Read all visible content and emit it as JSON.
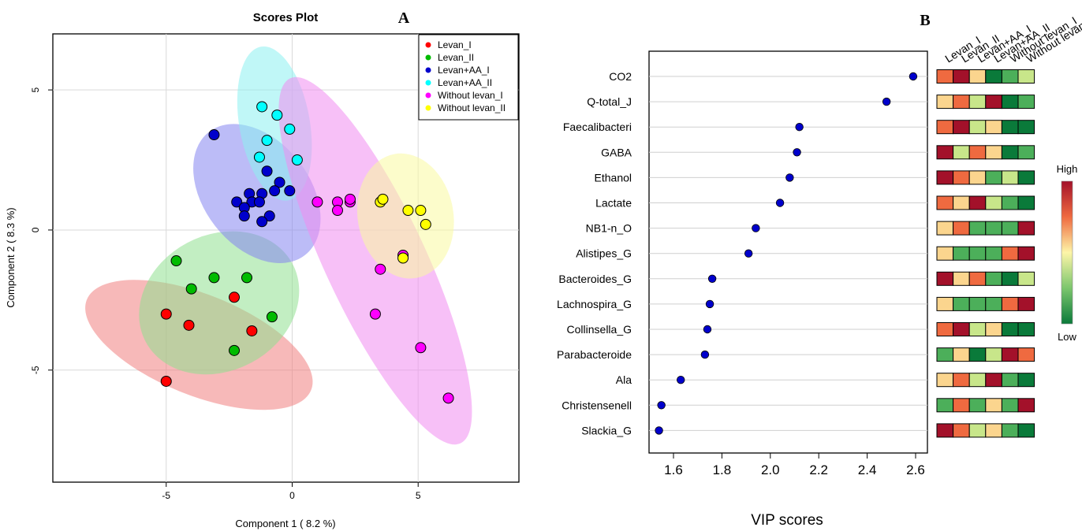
{
  "panels": {
    "a_letter": "A",
    "b_letter": "B"
  },
  "chart_data": [
    {
      "type": "scatter",
      "title": "Scores Plot",
      "xlabel": "Component 1 ( 8.2 %)",
      "ylabel": "Component 2 ( 8.3 %)",
      "xlim": [
        -9.5,
        9.0
      ],
      "ylim": [
        -9.0,
        7.0
      ],
      "xticks": [
        -5,
        0,
        5
      ],
      "yticks": [
        -5,
        0,
        5
      ],
      "grid": true,
      "legend_position": "top-right",
      "series": [
        {
          "name": "Levan_I",
          "color": "#ff0000",
          "points": [
            [
              -5.0,
              -3.0
            ],
            [
              -4.1,
              -3.4
            ],
            [
              -2.3,
              -2.4
            ],
            [
              -1.6,
              -3.6
            ],
            [
              -5.0,
              -5.4
            ]
          ],
          "ellipse": {
            "cx": -3.7,
            "cy": -4.1,
            "rx": 4.8,
            "ry": 2.0,
            "angle": 22,
            "fill": "#f08080"
          }
        },
        {
          "name": "Levan_II",
          "color": "#00bb00",
          "points": [
            [
              -4.6,
              -1.1
            ],
            [
              -4.0,
              -2.1
            ],
            [
              -3.1,
              -1.7
            ],
            [
              -1.8,
              -1.7
            ],
            [
              -0.8,
              -3.1
            ],
            [
              -2.3,
              -4.3
            ]
          ],
          "ellipse": {
            "cx": -2.9,
            "cy": -2.6,
            "rx": 3.3,
            "ry": 2.7,
            "angle": -28,
            "fill": "#90e090"
          }
        },
        {
          "name": "Levan+AA_I",
          "color": "#0000cc",
          "points": [
            [
              -3.1,
              3.4
            ],
            [
              -1.0,
              2.1
            ],
            [
              -0.5,
              1.7
            ],
            [
              -0.1,
              1.4
            ],
            [
              -0.7,
              1.4
            ],
            [
              -1.2,
              1.3
            ],
            [
              -1.7,
              1.3
            ],
            [
              -1.6,
              1.0
            ],
            [
              -1.3,
              1.0
            ],
            [
              -2.2,
              1.0
            ],
            [
              -1.9,
              0.8
            ],
            [
              -1.9,
              0.5
            ],
            [
              -0.9,
              0.5
            ],
            [
              -1.2,
              0.3
            ]
          ],
          "ellipse": {
            "cx": -1.4,
            "cy": 1.3,
            "rx": 2.1,
            "ry": 3.1,
            "angle": -38,
            "fill": "#8585f0"
          }
        },
        {
          "name": "Levan+AA_II",
          "color": "#00ffff",
          "points": [
            [
              -1.2,
              4.4
            ],
            [
              -0.6,
              4.1
            ],
            [
              -0.1,
              3.6
            ],
            [
              -1.0,
              3.2
            ],
            [
              -1.3,
              2.6
            ],
            [
              0.2,
              2.5
            ]
          ],
          "ellipse": {
            "cx": -0.7,
            "cy": 3.8,
            "rx": 1.4,
            "ry": 3.1,
            "angle": -10,
            "fill": "#8cf0f0"
          }
        },
        {
          "name": "Without levan_I",
          "color": "#ff00ff",
          "points": [
            [
              1.0,
              1.0
            ],
            [
              1.8,
              1.0
            ],
            [
              1.8,
              0.7
            ],
            [
              2.3,
              1.0
            ],
            [
              2.3,
              1.1
            ],
            [
              4.4,
              -0.9
            ],
            [
              3.5,
              -1.4
            ],
            [
              3.3,
              -3.0
            ],
            [
              5.1,
              -4.2
            ],
            [
              6.2,
              -6.0
            ]
          ],
          "ellipse": {
            "cx": 3.3,
            "cy": -1.1,
            "rx": 2.0,
            "ry": 8.0,
            "angle": -25,
            "fill": "#f08cf0"
          }
        },
        {
          "name": "Without levan_II",
          "color": "#ffff00",
          "points": [
            [
              3.5,
              1.0
            ],
            [
              3.6,
              1.1
            ],
            [
              4.6,
              0.7
            ],
            [
              5.1,
              0.7
            ],
            [
              5.3,
              0.2
            ],
            [
              4.4,
              -1.0
            ]
          ],
          "ellipse": {
            "cx": 4.5,
            "cy": 0.5,
            "rx": 1.9,
            "ry": 2.5,
            "angle": -10,
            "fill": "#fafaa0"
          }
        }
      ]
    },
    {
      "type": "scatter",
      "xlabel": "VIP scores",
      "xlim": [
        1.5,
        2.62
      ],
      "xticks": [
        "1.6",
        "1.8",
        "2.0",
        "2.2",
        "2.4",
        "2.6"
      ],
      "grid": false,
      "marker_color": "#0000cc",
      "features": [
        "CO2",
        "Q-total_J",
        "Faecalibacteri",
        "GABA",
        "Ethanol",
        "Lactate",
        "NB1-n_O",
        "Alistipes_G",
        "Bacteroides_G",
        "Lachnospira_G",
        "Collinsella_G",
        "Parabacteroide",
        "Ala",
        "Christensenell",
        "Slackia_G"
      ],
      "values": [
        2.59,
        2.48,
        2.12,
        2.11,
        2.08,
        2.04,
        1.94,
        1.91,
        1.76,
        1.75,
        1.74,
        1.73,
        1.63,
        1.55,
        1.54
      ]
    },
    {
      "type": "heatmap",
      "columns": [
        "Levan_I",
        "Levan_II",
        "Levan+AA_I",
        "Levan+AA_II",
        "Without levan_I",
        "Without levan_II"
      ],
      "rows": [
        "CO2",
        "Q-total_J",
        "Faecalibacteri",
        "GABA",
        "Ethanol",
        "Lactate",
        "NB1-n_O",
        "Alistipes_G",
        "Bacteroides_G",
        "Lachnospira_G",
        "Collinsella_G",
        "Parabacteroide",
        "Ala",
        "Christensenell",
        "Slackia_G"
      ],
      "levels_note": "1 = Low (dark green) ... 6 = High (dark red)",
      "values": [
        [
          5,
          6,
          4,
          1,
          2,
          3
        ],
        [
          4,
          5,
          3,
          6,
          1,
          2
        ],
        [
          5,
          6,
          3,
          4,
          1,
          1
        ],
        [
          6,
          3,
          5,
          4,
          1,
          2
        ],
        [
          6,
          5,
          4,
          2,
          3,
          1
        ],
        [
          5,
          4,
          6,
          3,
          2,
          1
        ],
        [
          4,
          5,
          2,
          2,
          2,
          6
        ],
        [
          4,
          2,
          2,
          2,
          5,
          6
        ],
        [
          6,
          4,
          5,
          2,
          1,
          3
        ],
        [
          4,
          2,
          2,
          2,
          5,
          6
        ],
        [
          5,
          6,
          3,
          4,
          1,
          1
        ],
        [
          2,
          4,
          1,
          3,
          6,
          5
        ],
        [
          4,
          5,
          3,
          6,
          2,
          1
        ],
        [
          2,
          5,
          2,
          4,
          2,
          6
        ],
        [
          6,
          5,
          3,
          4,
          2,
          1
        ]
      ],
      "palette": [
        "#0a7a3a",
        "#4caf5a",
        "#c8e68a",
        "#fbd58e",
        "#ef6a40",
        "#a3112a"
      ],
      "colorbar": {
        "high_label": "High",
        "low_label": "Low",
        "colors": [
          "#a3112a",
          "#ef6a40",
          "#fdf5a8",
          "#7cc66d",
          "#0a7a3a"
        ]
      }
    }
  ]
}
